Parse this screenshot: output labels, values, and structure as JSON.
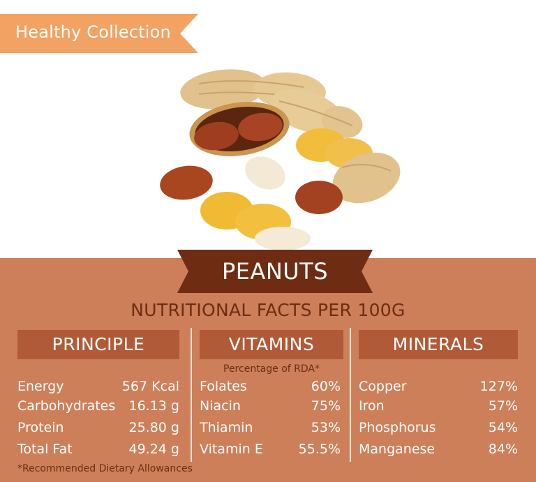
{
  "header": {
    "collection_label": "Healthy Collection"
  },
  "title": "PEANUTS",
  "subtitle": "NUTRITIONAL FACTS PER 100G",
  "colors": {
    "panel": "#cd7f59",
    "header_bar": "#b05a37",
    "banner": "#6e2c12",
    "tag": "#f2a262"
  },
  "illustration": "peanuts-illustration",
  "principle": {
    "heading": "PRINCIPLE",
    "rows": [
      {
        "label": "Energy",
        "value": "567 Kcal"
      },
      {
        "label": "Carbohydrates",
        "value": "16.13 g"
      },
      {
        "label": "Protein",
        "value": "25.80 g"
      },
      {
        "label": "Total Fat",
        "value": "49.24 g"
      }
    ]
  },
  "vitamins": {
    "heading": "VITAMINS",
    "note": "Percentage of RDA*",
    "rows": [
      {
        "label": "Folates",
        "value": "60%"
      },
      {
        "label": "Niacin",
        "value": "75%"
      },
      {
        "label": "Thiamin",
        "value": "53%"
      },
      {
        "label": "Vitamin E",
        "value": "55.5%"
      }
    ]
  },
  "minerals": {
    "heading": "MINERALS",
    "rows": [
      {
        "label": "Copper",
        "value": "127%"
      },
      {
        "label": "Iron",
        "value": "57%"
      },
      {
        "label": "Phosphorus",
        "value": "54%"
      },
      {
        "label": "Manganese",
        "value": "84%"
      }
    ]
  },
  "footnote": "*Recommended Dietary Allowances"
}
